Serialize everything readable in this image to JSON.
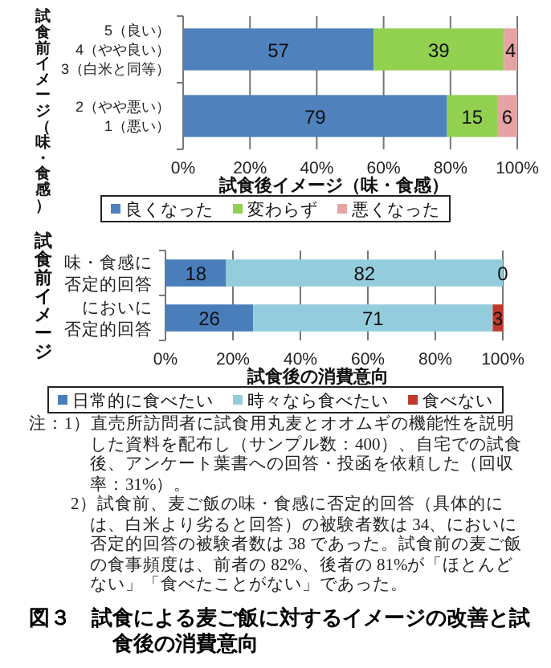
{
  "chart_data": [
    {
      "type": "bar",
      "orientation": "horizontal",
      "stacked": true,
      "data_labels": true,
      "grid": "x",
      "legend": "bottom",
      "ylabel": "試食前イメージ（味・食感）",
      "xlabel": "試食後イメージ（味・食感）",
      "categories": [
        "5（良い）\n4（やや良い）\n3（白米と同等）",
        "2（やや悪い）\n1（悪い）"
      ],
      "xlim": [
        0,
        100
      ],
      "xticks": [
        {
          "value": 0,
          "label": "0%"
        },
        {
          "value": 20,
          "label": "20%"
        },
        {
          "value": 40,
          "label": "40%"
        },
        {
          "value": 60,
          "label": "60%"
        },
        {
          "value": 80,
          "label": "80%"
        },
        {
          "value": 100,
          "label": "100%"
        }
      ],
      "series": [
        {
          "name": "良くなった",
          "color": "#4f81bd",
          "values": [
            57,
            79
          ]
        },
        {
          "name": "変わらず",
          "color": "#92d050",
          "values": [
            39,
            15
          ]
        },
        {
          "name": "悪くなった",
          "color": "#e6a3a3",
          "values": [
            4,
            6
          ]
        }
      ]
    },
    {
      "type": "bar",
      "orientation": "horizontal",
      "stacked": true,
      "data_labels": true,
      "grid": "x",
      "legend": "bottom",
      "ylabel": "試食前イメージ",
      "xlabel": "試食後の消費意向",
      "categories": [
        "味・食感に否定的回答",
        "においに否定的回答"
      ],
      "xlim": [
        0,
        100
      ],
      "xticks": [
        {
          "value": 0,
          "label": "0%"
        },
        {
          "value": 20,
          "label": "20%"
        },
        {
          "value": 40,
          "label": "40%"
        },
        {
          "value": 60,
          "label": "60%"
        },
        {
          "value": 80,
          "label": "80%"
        },
        {
          "value": 100,
          "label": "100%"
        }
      ],
      "series": [
        {
          "name": "日常的に食べたい",
          "color": "#4a7ebb",
          "values": [
            18,
            26
          ]
        },
        {
          "name": "時々なら食べたい",
          "color": "#93cddd",
          "values": [
            82,
            71
          ]
        },
        {
          "name": "食べない",
          "color": "#c0392b",
          "values": [
            0,
            3
          ]
        }
      ],
      "annotations": [
        "注：1）直売所訪問者に試食用丸麦とオオムギの機能性を説明した資料を配布し（サンプル数：400）、自宅での試食後、アンケート葉書への回答・投函を依頼した（回収率：31%）。",
        "2）試食前、麦ご飯の味・食感に否定的回答（具体的には、白米より劣ると回答）の被験者数は 34、においに否定的回答の被験者数は 38 であった。試食前の麦ご飯の食事頻度は、前者の 82%、後者の 81%が「ほとんどない」「食べたことがない」であった。",
        "図３　試食による麦ご飯に対するイメージの改善と試食後の消費意向"
      ]
    }
  ]
}
